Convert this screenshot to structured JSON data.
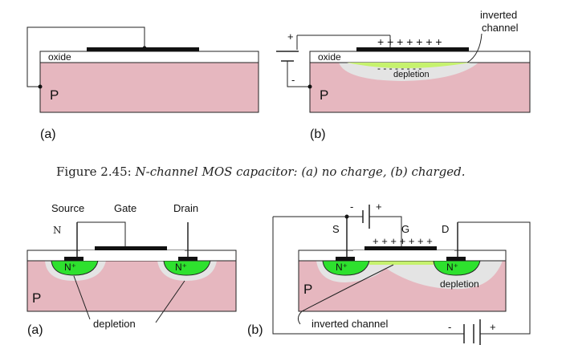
{
  "colors": {
    "substrate": "#e6b7bf",
    "green": "#2ee12e",
    "lime": "#c6f26e",
    "depletion": "#e4e4e4",
    "metal": "#111111"
  },
  "top": {
    "a": {
      "oxide": "oxide",
      "p": "P",
      "tag": "(a)"
    },
    "b": {
      "oxide": "oxide",
      "p": "P",
      "tag": "(b)",
      "plus": "+",
      "minus": "-",
      "charges_top": "+ + + + + + +",
      "charges_bottom": "- - - - - - - -",
      "depletion": "depletion",
      "inverted_line1": "inverted",
      "inverted_line2": "channel"
    }
  },
  "caption": {
    "prefix": "Figure 2.45: ",
    "text": "N-channel MOS capacitor: (a) no charge, (b) charged."
  },
  "bottom": {
    "a": {
      "source": "Source",
      "gate": "Gate",
      "drain": "Drain",
      "n": "N",
      "n_plus_left": "N⁺",
      "n_plus_right": "N⁺",
      "p": "P",
      "tag": "(a)",
      "depletion": "depletion"
    },
    "b": {
      "s": "S",
      "g": "G",
      "d": "D",
      "minus": "-",
      "plus": "+",
      "charges": "+ + + + + + +",
      "n_plus_left": "N⁺",
      "n_plus_right": "N⁺",
      "p": "P",
      "tag": "(b)",
      "depletion": "depletion",
      "inverted": "inverted channel",
      "battery_minus": "-",
      "battery_plus": "+"
    }
  }
}
